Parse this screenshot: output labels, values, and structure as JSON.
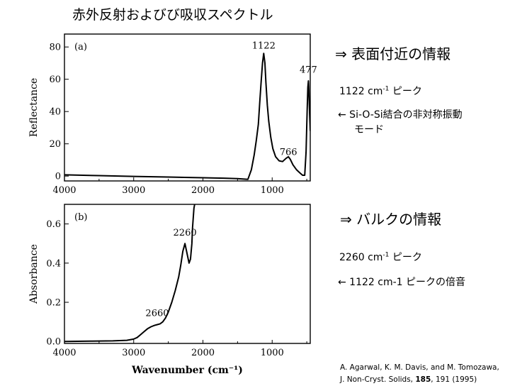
{
  "title": "赤外反射およびび吸収スペクトル",
  "panel_a": {
    "heading_arrow": "⇒",
    "heading": "表面付近の情報",
    "peak_prefix": "1122 cm",
    "peak_sup": "-1",
    "peak_suffix": " ピーク",
    "assign_line1": "← Si-O-Si結合の非対称振動",
    "assign_line2": "モード"
  },
  "panel_b": {
    "heading_arrow": "⇒",
    "heading": "バルクの情報",
    "peak_prefix": "2260 cm",
    "peak_sup": "-1",
    "peak_suffix": " ピーク",
    "assign_line1": "← 1122 cm-1 ピークの倍音"
  },
  "citation": {
    "line1": "A. Agarwal, K. M. Davis, and M. Tomozawa,",
    "line2_pre": "J. Non-Cryst. Solids, ",
    "line2_bold": "185",
    "line2_post": ", 191 (1995)"
  },
  "chart_data": [
    {
      "type": "line",
      "panel_label": "(a)",
      "ylabel": "Reflectance",
      "xlabel": "",
      "x_reversed": true,
      "xlim": [
        4000,
        450
      ],
      "ylim": [
        -3,
        88
      ],
      "xticks": [
        4000,
        3000,
        2000,
        1000
      ],
      "yticks": [
        0,
        20,
        40,
        60,
        80
      ],
      "annotations": [
        {
          "text": "1122",
          "x": 1122,
          "y": 79
        },
        {
          "text": "477",
          "x": 477,
          "y": 64
        },
        {
          "text": "766",
          "x": 766,
          "y": 13
        }
      ],
      "series": [
        {
          "x": [
            4000,
            3500,
            3000,
            2500,
            2000,
            1700,
            1500,
            1350,
            1300,
            1260,
            1230,
            1200,
            1180,
            1160,
            1140,
            1122,
            1105,
            1090,
            1070,
            1050,
            1020,
            990,
            950,
            900,
            850,
            800,
            766,
            740,
            700,
            650,
            600,
            560,
            530,
            510,
            495,
            485,
            477,
            470,
            460,
            450
          ],
          "y": [
            0.8,
            0.3,
            -0.2,
            -0.6,
            -1.0,
            -1.3,
            -1.6,
            -2.0,
            4,
            13,
            22,
            32,
            45,
            58,
            70,
            76,
            70,
            58,
            44,
            34,
            24,
            17,
            12,
            9.5,
            9.0,
            11,
            12,
            10.5,
            7,
            4,
            2,
            0.5,
            0.5,
            15,
            40,
            55,
            59,
            53,
            40,
            28
          ]
        }
      ]
    },
    {
      "type": "line",
      "panel_label": "(b)",
      "ylabel": "Absorbance",
      "xlabel": "Wavenumber (cm⁻¹)",
      "x_reversed": true,
      "xlim": [
        4000,
        450
      ],
      "ylim": [
        -0.01,
        0.7
      ],
      "xticks": [
        4000,
        3000,
        2000,
        1000
      ],
      "yticks": [
        0.0,
        0.2,
        0.4,
        0.6
      ],
      "annotations": [
        {
          "text": "2260",
          "x": 2260,
          "y": 0.54
        },
        {
          "text": "2660",
          "x": 2660,
          "y": 0.13
        }
      ],
      "series": [
        {
          "x": [
            4000,
            3600,
            3300,
            3100,
            3000,
            2950,
            2900,
            2850,
            2800,
            2750,
            2700,
            2660,
            2620,
            2580,
            2540,
            2500,
            2450,
            2400,
            2350,
            2320,
            2290,
            2260,
            2230,
            2200,
            2180,
            2160,
            2150,
            2140,
            2130,
            2120
          ],
          "y": [
            0.0,
            0.002,
            0.003,
            0.006,
            0.012,
            0.02,
            0.035,
            0.05,
            0.065,
            0.075,
            0.082,
            0.086,
            0.09,
            0.1,
            0.12,
            0.15,
            0.2,
            0.26,
            0.33,
            0.39,
            0.46,
            0.5,
            0.45,
            0.4,
            0.42,
            0.5,
            0.58,
            0.63,
            0.68,
            0.7
          ]
        }
      ]
    }
  ]
}
